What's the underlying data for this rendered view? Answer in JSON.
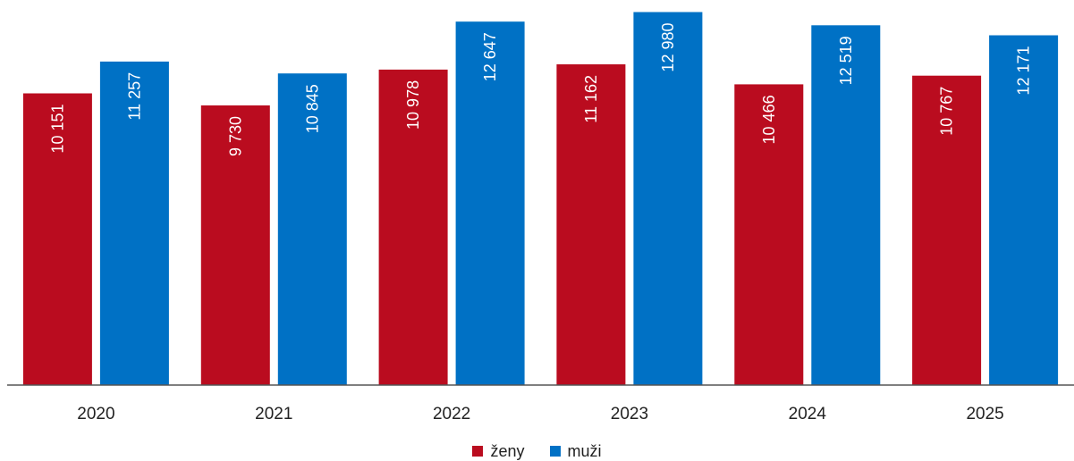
{
  "chart_data": {
    "type": "bar",
    "title": "",
    "xlabel": "",
    "ylabel": "",
    "categories": [
      "2020",
      "2021",
      "2022",
      "2023",
      "2024",
      "2025"
    ],
    "series": [
      {
        "name": "ženy",
        "color": "#ba0c1f",
        "values": [
          10151,
          9730,
          10978,
          11162,
          10466,
          10767
        ],
        "labels": [
          "10 151",
          "9 730",
          "10 978",
          "11 162",
          "10 466",
          "10 767"
        ]
      },
      {
        "name": "muži",
        "color": "#0071c5",
        "values": [
          11257,
          10845,
          12647,
          12980,
          12519,
          12171
        ],
        "labels": [
          "11 257",
          "10 845",
          "12 647",
          "12 980",
          "12 519",
          "12 171"
        ]
      }
    ],
    "ylim": [
      0,
      13400
    ],
    "grid": false,
    "legend": "bottom-center"
  }
}
